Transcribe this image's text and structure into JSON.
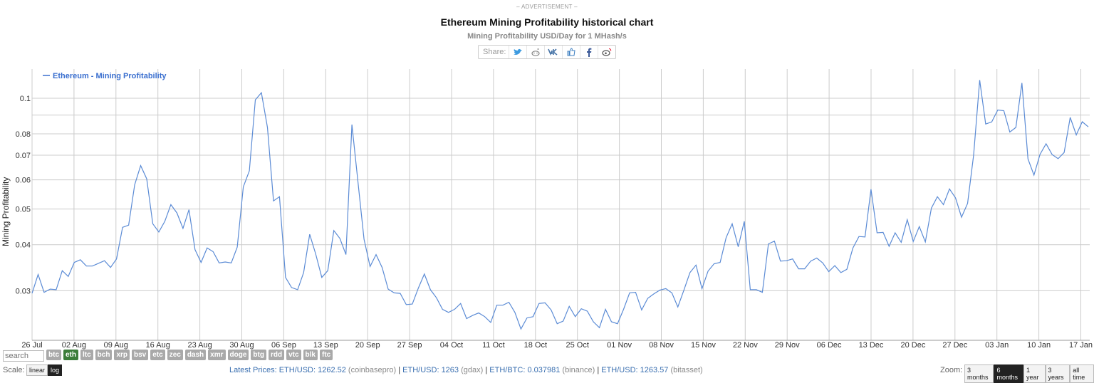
{
  "header": {
    "ad_label": "– ADVERTISEMENT –",
    "title": "Ethereum Mining Profitability historical chart",
    "subtitle": "Mining Profitability USD/Day for 1 MHash/s",
    "share_label": "Share:",
    "share_icons": [
      "twitter-icon",
      "reddit-icon",
      "vk-icon",
      "like-icon",
      "facebook-icon",
      "weibo-icon"
    ]
  },
  "chart_data": {
    "type": "line",
    "title": "Ethereum Mining Profitability historical chart",
    "subtitle": "Mining Profitability USD/Day for 1 MHash/s",
    "ylabel": "Mining Profitability",
    "xlabel": "",
    "yscale": "log",
    "ylim": [
      0.022,
      0.12
    ],
    "y_ticks": [
      "0.03",
      "0.04",
      "0.05",
      "0.06",
      "0.07",
      "0.08",
      "0.1"
    ],
    "x_ticks": [
      "26 Jul",
      "02 Aug",
      "09 Aug",
      "16 Aug",
      "23 Aug",
      "30 Aug",
      "06 Sep",
      "13 Sep",
      "20 Sep",
      "27 Sep",
      "04 Oct",
      "11 Oct",
      "18 Oct",
      "25 Oct",
      "01 Nov",
      "08 Nov",
      "15 Nov",
      "22 Nov",
      "29 Nov",
      "06 Dec",
      "13 Dec",
      "20 Dec",
      "27 Dec",
      "03 Jan",
      "10 Jan",
      "17 Jan"
    ],
    "grid": true,
    "legend": "top-left",
    "color": "#5b8bd5",
    "series": [
      {
        "name": "Ethereum - Mining Profitability",
        "values": [
          0.0295,
          0.0332,
          0.0297,
          0.0303,
          0.0302,
          0.034,
          0.0328,
          0.0358,
          0.0364,
          0.035,
          0.035,
          0.0356,
          0.0362,
          0.0347,
          0.0366,
          0.0446,
          0.0452,
          0.0582,
          0.0656,
          0.0604,
          0.0456,
          0.0433,
          0.0463,
          0.0514,
          0.0488,
          0.0443,
          0.0498,
          0.0388,
          0.0358,
          0.0392,
          0.0383,
          0.0357,
          0.0359,
          0.0357,
          0.0394,
          0.0574,
          0.0635,
          0.099,
          0.1035,
          0.0833,
          0.0526,
          0.054,
          0.0326,
          0.0306,
          0.0302,
          0.0336,
          0.0427,
          0.0377,
          0.0326,
          0.034,
          0.0437,
          0.0416,
          0.0376,
          0.0848,
          0.0592,
          0.0414,
          0.0349,
          0.0376,
          0.0347,
          0.0303,
          0.0296,
          0.0295,
          0.0275,
          0.0276,
          0.0305,
          0.0333,
          0.0302,
          0.0287,
          0.0267,
          0.0262,
          0.0267,
          0.0277,
          0.0252,
          0.0257,
          0.0261,
          0.0255,
          0.0246,
          0.0274,
          0.0274,
          0.0279,
          0.0262,
          0.0236,
          0.0253,
          0.0255,
          0.0277,
          0.0278,
          0.0266,
          0.0244,
          0.0248,
          0.0272,
          0.0255,
          0.0268,
          0.0264,
          0.0247,
          0.0238,
          0.0267,
          0.0247,
          0.0244,
          0.0267,
          0.0296,
          0.0297,
          0.0266,
          0.0286,
          0.0294,
          0.0301,
          0.0304,
          0.0296,
          0.0271,
          0.0301,
          0.0336,
          0.0352,
          0.0304,
          0.0339,
          0.0355,
          0.0358,
          0.0418,
          0.0456,
          0.0395,
          0.0463,
          0.0302,
          0.0302,
          0.0297,
          0.0402,
          0.0409,
          0.0361,
          0.0362,
          0.0366,
          0.0344,
          0.0344,
          0.0361,
          0.0368,
          0.0357,
          0.0338,
          0.0351,
          0.0336,
          0.0343,
          0.0392,
          0.0421,
          0.042,
          0.0566,
          0.0431,
          0.0432,
          0.0396,
          0.0431,
          0.0406,
          0.0468,
          0.0408,
          0.0448,
          0.0407,
          0.0503,
          0.054,
          0.0514,
          0.0567,
          0.0536,
          0.0475,
          0.0518,
          0.0701,
          0.112,
          0.0851,
          0.0862,
          0.0929,
          0.0925,
          0.0809,
          0.0833,
          0.11,
          0.0684,
          0.0618,
          0.0704,
          0.0752,
          0.0703,
          0.0685,
          0.0712,
          0.0887,
          0.0795,
          0.0863,
          0.0836
        ]
      }
    ]
  },
  "coins": {
    "search_placeholder": "search",
    "items": [
      "btc",
      "eth",
      "ltc",
      "bch",
      "xrp",
      "bsv",
      "etc",
      "zec",
      "dash",
      "xmr",
      "doge",
      "btg",
      "rdd",
      "vtc",
      "blk",
      "ftc"
    ],
    "active": "eth"
  },
  "scale": {
    "label": "Scale:",
    "options": [
      "linear",
      "log"
    ],
    "active": "log"
  },
  "prices": {
    "prefix": "Latest Prices:",
    "items": [
      {
        "pair": "ETH/USD: 1262.52",
        "source": "(coinbasepro)"
      },
      {
        "pair": "ETH/USD: 1263",
        "source": "(gdax)"
      },
      {
        "pair": "ETH/BTC: 0.037981",
        "source": "(binance)"
      },
      {
        "pair": "ETH/USD: 1263.57",
        "source": "(bitasset)"
      }
    ]
  },
  "zoom": {
    "label": "Zoom:",
    "options": [
      "3 months",
      "6 months",
      "1 year",
      "3 years",
      "all time"
    ],
    "active": "6 months"
  }
}
